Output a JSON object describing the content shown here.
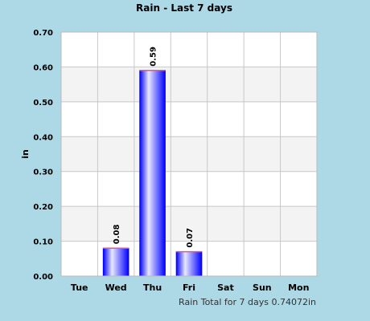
{
  "chart_data": {
    "type": "bar",
    "title": "Rain - Last 7 days",
    "ylabel": "in",
    "xlabel": "",
    "categories": [
      "Tue",
      "Wed",
      "Thu",
      "Fri",
      "Sat",
      "Sun",
      "Mon"
    ],
    "values": [
      0,
      0.08,
      0.59,
      0.07,
      0,
      0,
      0
    ],
    "data_labels": [
      "",
      "0.08",
      "0.59",
      "0.07",
      "",
      "",
      ""
    ],
    "ylim": [
      0,
      0.7
    ],
    "yticks": [
      "0.00",
      "0.10",
      "0.20",
      "0.30",
      "0.40",
      "0.50",
      "0.60",
      "0.70"
    ],
    "grid": true,
    "footer": "Rain Total for 7 days 0.74072in",
    "colors": {
      "background": "#add8e6",
      "plot_band_light": "#ffffff",
      "plot_band_dark": "#f3f3f3",
      "gridline": "#c8c8c8",
      "bar_edge": "#0000ff",
      "bar_center": "#e8e8ff",
      "bar_top": "#e05a8a"
    }
  }
}
